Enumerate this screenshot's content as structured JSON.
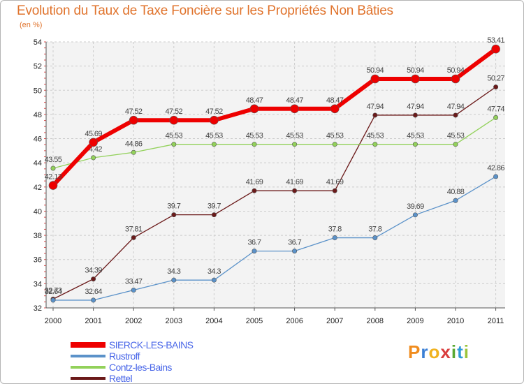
{
  "title": "Evolution du Taux de Taxe Foncière sur les Propriétés Non Bâties",
  "subtitle": "(en %)",
  "brand": "Proxiti",
  "chart_data": {
    "type": "line",
    "title": "Evolution du Taux de Taxe Foncière sur les Propriétés Non Bâties",
    "ylabel": "(en %)",
    "xlabel": "",
    "ylim": [
      32,
      54
    ],
    "yticks": [
      32,
      34,
      36,
      38,
      40,
      42,
      44,
      46,
      48,
      50,
      52,
      54
    ],
    "grid": true,
    "legend_position": "bottom-left",
    "categories": [
      "2000",
      "2001",
      "2002",
      "2003",
      "2004",
      "2005",
      "2006",
      "2007",
      "2008",
      "2009",
      "2010",
      "2011"
    ],
    "series": [
      {
        "name": "Rettel",
        "color": "#6b1a1a",
        "values": [
          32.73,
          34.39,
          37.81,
          39.7,
          39.7,
          41.69,
          41.69,
          41.69,
          47.94,
          47.94,
          47.94,
          50.27
        ],
        "labels": [
          "32.73",
          "34.39",
          "37.81",
          "39.7",
          "39.7",
          "41.69",
          "41.69",
          "41.69",
          "47.94",
          "47.94",
          "47.94",
          "50.27"
        ]
      },
      {
        "name": "Contz-les-Bains",
        "color": "#92d15a",
        "values": [
          43.55,
          44.42,
          44.86,
          45.53,
          45.53,
          45.53,
          45.53,
          45.53,
          45.53,
          45.53,
          45.53,
          47.74
        ],
        "labels": [
          "43.55",
          "44.42",
          "44.86",
          "45.53",
          "45.53",
          "45.53",
          "45.53",
          "45.53",
          "45.53",
          "45.53",
          "45.53",
          "47.74"
        ]
      },
      {
        "name": "Rustroff",
        "color": "#5b92c9",
        "values": [
          32.64,
          32.64,
          33.47,
          34.3,
          34.3,
          36.7,
          36.7,
          37.8,
          37.8,
          39.69,
          40.88,
          42.86
        ],
        "labels": [
          "32.64",
          "32.64",
          "33.47",
          "34.3",
          "34.3",
          "36.7",
          "36.7",
          "37.8",
          "37.8",
          "39.69",
          "40.88",
          "42.86"
        ]
      },
      {
        "name": "SIERCK-LES-BAINS",
        "color": "#ee0000",
        "values": [
          42.13,
          45.69,
          47.52,
          47.52,
          47.52,
          48.47,
          48.47,
          48.47,
          50.94,
          50.94,
          50.94,
          53.41
        ],
        "labels": [
          "42.13",
          "45.69",
          "47.52",
          "47.52",
          "47.52",
          "48.47",
          "48.47",
          "48.47",
          "50.94",
          "50.94",
          "50.94",
          "53.41"
        ]
      }
    ],
    "legend_order": [
      "SIERCK-LES-BAINS",
      "Rustroff",
      "Contz-les-Bains",
      "Rettel"
    ]
  }
}
